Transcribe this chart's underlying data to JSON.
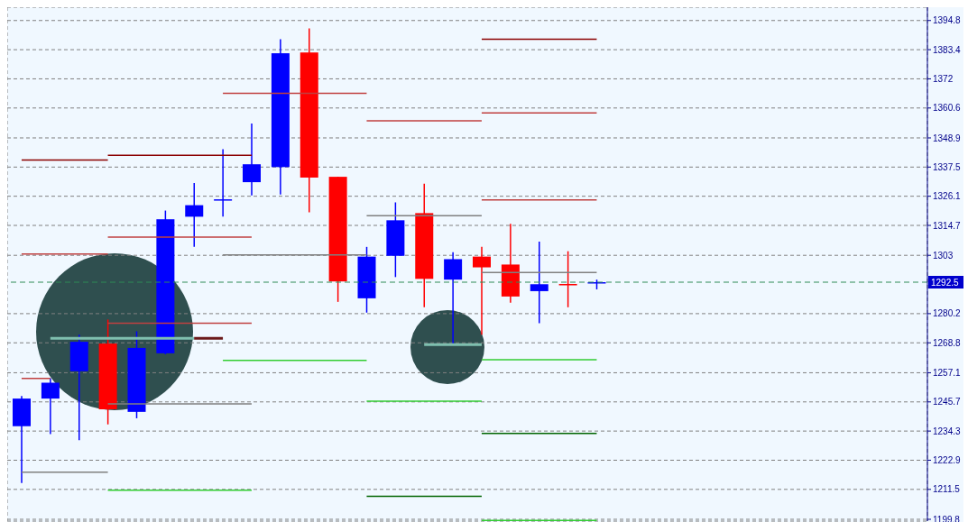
{
  "chart_data": {
    "type": "candlestick",
    "categories": [
      null,
      null,
      null,
      null,
      null,
      null,
      null,
      null,
      null,
      null,
      null,
      null,
      null,
      null,
      null,
      null,
      null,
      null,
      null,
      null,
      null,
      null,
      null,
      null,
      null,
      null,
      null,
      null,
      null,
      null,
      null,
      null
    ],
    "ohlc": [
      [
        1236.2,
        1248.0,
        1214.0,
        1247.0
      ],
      [
        1247.0,
        1255.0,
        1233.1,
        1253.2
      ],
      [
        1257.7,
        1272.0,
        1230.7,
        1269.2
      ],
      [
        1268.5,
        1277.9,
        1236.9,
        1242.8
      ],
      [
        1241.8,
        1273.3,
        1239.3,
        1266.8
      ],
      [
        1264.7,
        1320.5,
        1264.3,
        1317.1
      ],
      [
        1318.1,
        1331.3,
        1306.3,
        1322.6
      ],
      [
        1324.7,
        1344.5,
        1318.1,
        1324.9
      ],
      [
        1331.6,
        1354.5,
        1326.4,
        1338.6
      ],
      [
        1337.5,
        1387.5,
        1326.8,
        1382.0
      ],
      [
        1382.3,
        1391.7,
        1319.8,
        1333.4
      ],
      [
        1333.7,
        1333.7,
        1284.8,
        1292.8
      ],
      [
        1286.2,
        1306.3,
        1280.6,
        1302.5
      ],
      [
        1302.8,
        1323.7,
        1294.5,
        1316.7
      ],
      [
        1319.5,
        1331.0,
        1282.7,
        1293.8
      ],
      [
        1293.5,
        1304.2,
        1267.8,
        1301.5
      ],
      [
        1302.5,
        1306.3,
        1272.0,
        1298.3
      ],
      [
        1299.4,
        1315.3,
        1284.5,
        1286.9
      ],
      [
        1289.0,
        1308.4,
        1276.5,
        1291.7
      ],
      [
        1291.8,
        1304.6,
        1282.7,
        1291.7
      ],
      [
        1292.4,
        1293.5,
        1289.7,
        1292.5
      ],
      null,
      null,
      null,
      null,
      null,
      null,
      null,
      null,
      null,
      null,
      null
    ],
    "colors": [
      "#0000ff",
      "#0000ff",
      "#0000ff",
      "#ff0000",
      "#0000ff",
      "#0000ff",
      "#0000ff",
      "#0000ff",
      "#0000ff",
      "#0000ff",
      "#ff0000",
      "#ff0000",
      "#0000ff",
      "#0000ff",
      "#ff0000",
      "#0000ff",
      "#ff0000",
      "#ff0000",
      "#0000ff",
      "#ff0000",
      "#0000ff",
      null,
      null,
      null,
      null,
      null,
      null,
      null,
      null,
      null,
      null,
      null
    ],
    "series": [
      {
        "type": "line",
        "color": "#8b0000",
        "values": [
          1340.3,
          1340.3,
          1340.3,
          1340.3,
          null,
          null,
          null,
          null,
          null,
          null,
          null,
          null,
          null,
          null,
          null,
          null,
          null,
          null,
          null,
          null,
          null,
          null,
          null,
          null,
          null,
          null,
          null,
          null,
          null,
          null,
          null,
          null
        ]
      },
      {
        "type": "line",
        "color": "#c04040",
        "values": [
          1303.5,
          1303.5,
          1303.5,
          1303.5,
          null,
          null,
          null,
          null,
          null,
          null,
          null,
          null,
          null,
          null,
          null,
          null,
          null,
          null,
          null,
          null,
          null,
          null,
          null,
          null,
          null,
          null,
          null,
          null,
          null,
          null,
          null,
          null
        ]
      },
      {
        "type": "line",
        "color": "#c04040",
        "values": [
          1254.9,
          1254.9,
          null,
          null,
          null,
          null,
          null,
          null,
          null,
          null,
          null,
          null,
          null,
          null,
          null,
          null,
          null,
          null,
          null,
          null,
          null,
          null,
          null,
          null,
          null,
          null,
          null,
          null,
          null,
          null,
          null,
          null
        ]
      },
      {
        "type": "line",
        "color": "#808080",
        "values": [
          1218.2,
          1218.2,
          1218.2,
          1218.2,
          null,
          null,
          null,
          null,
          null,
          null,
          null,
          null,
          null,
          null,
          null,
          null,
          null,
          null,
          null,
          null,
          null,
          null,
          null,
          null,
          null,
          null,
          null,
          null,
          null,
          null,
          null,
          null
        ]
      },
      {
        "type": "line",
        "color": "#8b0000",
        "values": [
          null,
          null,
          null,
          1342.1,
          1342.1,
          1342.1,
          1342.1,
          1342.1,
          1342.1,
          null,
          null,
          null,
          null,
          null,
          null,
          null,
          null,
          null,
          null,
          null,
          null,
          null,
          null,
          null,
          null,
          null,
          null,
          null,
          null,
          null,
          null,
          null
        ]
      },
      {
        "type": "line",
        "color": "#c04040",
        "values": [
          null,
          null,
          null,
          1310.1,
          1310.1,
          1310.1,
          1310.1,
          1310.1,
          1310.1,
          null,
          null,
          null,
          null,
          null,
          null,
          null,
          null,
          null,
          null,
          null,
          null,
          null,
          null,
          null,
          null,
          null,
          null,
          null,
          null,
          null,
          null,
          null
        ]
      },
      {
        "type": "line",
        "color": "#c04040",
        "values": [
          null,
          null,
          null,
          1276.5,
          1276.5,
          1276.5,
          1276.5,
          1276.5,
          1276.5,
          null,
          null,
          null,
          null,
          null,
          null,
          null,
          null,
          null,
          null,
          null,
          null,
          null,
          null,
          null,
          null,
          null,
          null,
          null,
          null,
          null,
          null,
          null
        ]
      },
      {
        "type": "line",
        "color": "#808080",
        "values": [
          null,
          null,
          null,
          1244.9,
          1244.9,
          1244.9,
          1244.9,
          1244.9,
          1244.9,
          null,
          null,
          null,
          null,
          null,
          null,
          null,
          null,
          null,
          null,
          null,
          null,
          null,
          null,
          null,
          null,
          null,
          null,
          null,
          null,
          null,
          null,
          null
        ]
      },
      {
        "type": "line",
        "color": "#32cd32",
        "values": [
          null,
          null,
          null,
          1211.2,
          1211.2,
          1211.2,
          1211.2,
          1211.2,
          1211.2,
          null,
          null,
          null,
          null,
          null,
          null,
          null,
          null,
          null,
          null,
          null,
          null,
          null,
          null,
          null,
          null,
          null,
          null,
          null,
          null,
          null,
          null,
          null
        ]
      },
      {
        "type": "line",
        "color": "#c04040",
        "values": [
          null,
          null,
          null,
          null,
          null,
          null,
          null,
          1366.3,
          1366.3,
          1366.3,
          1366.3,
          1366.3,
          1366.3,
          null,
          null,
          null,
          null,
          null,
          null,
          null,
          null,
          null,
          null,
          null,
          null,
          null,
          null,
          null,
          null,
          null,
          null,
          null
        ]
      },
      {
        "type": "line",
        "color": "#808080",
        "values": [
          null,
          null,
          null,
          null,
          null,
          null,
          null,
          1303.2,
          1303.2,
          1303.2,
          1303.2,
          1303.2,
          1303.2,
          null,
          null,
          null,
          null,
          null,
          null,
          null,
          null,
          null,
          null,
          null,
          null,
          null,
          null,
          null,
          null,
          null,
          null,
          null
        ]
      },
      {
        "type": "line",
        "color": "#32cd32",
        "values": [
          null,
          null,
          null,
          null,
          null,
          null,
          null,
          1261.9,
          1261.9,
          1261.9,
          1261.9,
          1261.9,
          1261.9,
          null,
          null,
          null,
          null,
          null,
          null,
          null,
          null,
          null,
          null,
          null,
          null,
          null,
          null,
          null,
          null,
          null,
          null,
          null
        ]
      },
      {
        "type": "line",
        "color": "#c04040",
        "values": [
          null,
          null,
          null,
          null,
          null,
          null,
          null,
          null,
          null,
          null,
          null,
          null,
          1355.6,
          1355.6,
          1355.6,
          1355.6,
          1355.6,
          null,
          null,
          null,
          null,
          null,
          null,
          null,
          null,
          null,
          null,
          null,
          null,
          null,
          null,
          null
        ]
      },
      {
        "type": "line",
        "color": "#808080",
        "values": [
          null,
          null,
          null,
          null,
          null,
          null,
          null,
          null,
          null,
          null,
          null,
          null,
          1318.5,
          1318.5,
          1318.5,
          1318.5,
          1318.5,
          null,
          null,
          null,
          null,
          null,
          null,
          null,
          null,
          null,
          null,
          null,
          null,
          null,
          null,
          null
        ]
      },
      {
        "type": "line",
        "color": "#32cd32",
        "values": [
          null,
          null,
          null,
          null,
          null,
          null,
          null,
          null,
          null,
          null,
          null,
          null,
          1246.0,
          1246.0,
          1246.0,
          1246.0,
          1246.0,
          null,
          null,
          null,
          null,
          null,
          null,
          null,
          null,
          null,
          null,
          null,
          null,
          null,
          null,
          null
        ]
      },
      {
        "type": "line",
        "color": "#006400",
        "values": [
          null,
          null,
          null,
          null,
          null,
          null,
          null,
          null,
          null,
          null,
          null,
          null,
          1208.8,
          1208.8,
          1208.8,
          1208.8,
          1208.8,
          null,
          null,
          null,
          null,
          null,
          null,
          null,
          null,
          null,
          null,
          null,
          null,
          null,
          null,
          null
        ]
      },
      {
        "type": "line",
        "color": "#8b0000",
        "values": [
          null,
          null,
          null,
          null,
          null,
          null,
          null,
          null,
          null,
          null,
          null,
          null,
          null,
          null,
          null,
          null,
          1387.5,
          1387.5,
          1387.5,
          1387.5,
          1387.5,
          null,
          null,
          null,
          null,
          null,
          null,
          null,
          null,
          null,
          null,
          null
        ]
      },
      {
        "type": "line",
        "color": "#c04040",
        "values": [
          null,
          null,
          null,
          null,
          null,
          null,
          null,
          null,
          null,
          null,
          null,
          null,
          null,
          null,
          null,
          null,
          1358.7,
          1358.7,
          1358.7,
          1358.7,
          1358.7,
          null,
          null,
          null,
          null,
          null,
          null,
          null,
          null,
          null,
          null,
          null
        ]
      },
      {
        "type": "line",
        "color": "#c04040",
        "values": [
          null,
          null,
          null,
          null,
          null,
          null,
          null,
          null,
          null,
          null,
          null,
          null,
          null,
          null,
          null,
          null,
          1324.7,
          1324.7,
          1324.7,
          1324.7,
          1324.7,
          null,
          null,
          null,
          null,
          null,
          null,
          null,
          null,
          null,
          null,
          null
        ]
      },
      {
        "type": "line",
        "color": "#808080",
        "values": [
          null,
          null,
          null,
          null,
          null,
          null,
          null,
          null,
          null,
          null,
          null,
          null,
          null,
          null,
          null,
          null,
          1296.3,
          1296.3,
          1296.3,
          1296.3,
          1296.3,
          null,
          null,
          null,
          null,
          null,
          null,
          null,
          null,
          null,
          null,
          null
        ]
      },
      {
        "type": "line",
        "color": "#32cd32",
        "values": [
          null,
          null,
          null,
          null,
          null,
          null,
          null,
          null,
          null,
          null,
          null,
          null,
          null,
          null,
          null,
          null,
          1262.2,
          1262.2,
          1262.2,
          1262.2,
          1262.2,
          null,
          null,
          null,
          null,
          null,
          null,
          null,
          null,
          null,
          null,
          null
        ]
      },
      {
        "type": "line",
        "color": "#006400",
        "values": [
          null,
          null,
          null,
          null,
          null,
          null,
          null,
          null,
          null,
          null,
          null,
          null,
          null,
          null,
          null,
          null,
          1233.4,
          1233.4,
          1233.4,
          1233.4,
          1233.4,
          null,
          null,
          null,
          null,
          null,
          null,
          null,
          null,
          null,
          null,
          null
        ]
      },
      {
        "type": "line",
        "color": "#32cd32",
        "values": [
          null,
          null,
          null,
          null,
          null,
          null,
          null,
          null,
          null,
          null,
          null,
          null,
          null,
          null,
          null,
          null,
          1199.4,
          1199.4,
          1199.4,
          1199.4,
          1199.4,
          null,
          null,
          null,
          null,
          null,
          null,
          null,
          null,
          null,
          null,
          null
        ]
      },
      {
        "type": "line",
        "color": "#7fbfaf",
        "values": [
          null,
          1270.6,
          1270.6,
          1270.6,
          1270.6,
          1270.6,
          1270.6,
          null,
          null,
          null,
          null,
          null,
          null,
          null,
          null,
          null,
          null,
          null,
          null,
          null,
          null,
          null,
          null,
          null,
          null,
          null,
          null,
          null,
          null,
          null,
          null,
          null
        ]
      },
      {
        "type": "line",
        "color": "#6b1a1a",
        "values": [
          null,
          null,
          null,
          null,
          null,
          null,
          1270.6,
          1270.6,
          null,
          null,
          null,
          null,
          null,
          null,
          null,
          null,
          null,
          null,
          null,
          null,
          null,
          null,
          null,
          null,
          null,
          null,
          null,
          null,
          null,
          null,
          null,
          null
        ]
      },
      {
        "type": "line",
        "color": "#7fbfaf",
        "values": [
          null,
          null,
          null,
          null,
          null,
          null,
          null,
          null,
          null,
          null,
          null,
          null,
          null,
          null,
          1268.1,
          1268.1,
          1268.1,
          null,
          null,
          null,
          null,
          null,
          null,
          null,
          null,
          null,
          null,
          null,
          null,
          null,
          null,
          null
        ]
      }
    ],
    "ref_lines": [
      {
        "axis": "y",
        "value": 1292.5,
        "label": "1292.5",
        "color": "#2e8b57",
        "line_style": "dashed"
      }
    ],
    "ylim": [
      1199.1,
      1400.0
    ],
    "yticks": [
      1394.8,
      1383.4,
      1372.0,
      1360.6,
      1348.9,
      1337.5,
      1326.1,
      1314.7,
      1303.0,
      1280.2,
      1268.8,
      1257.1,
      1245.7,
      1234.3,
      1222.9,
      1211.5,
      1199.8
    ],
    "grid": true,
    "tick_labels": "y",
    "legend": false
  }
}
